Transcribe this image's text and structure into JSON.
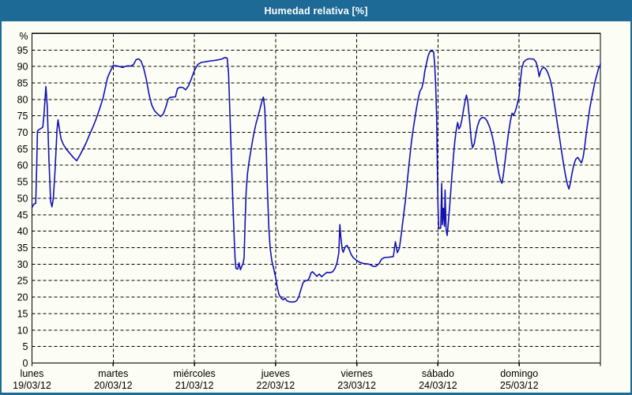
{
  "window": {
    "title": "Humedad relativa [%]"
  },
  "theme": {
    "frame_color": "#1e6a96",
    "panel_color": "#fcfdf4",
    "line_color": "#1212b4",
    "grid_color": "#000000",
    "text_color": "#000000",
    "title_color": "#ffffff"
  },
  "chart_data": {
    "type": "line",
    "title": "Humedad relativa [%]",
    "ylabel": "%",
    "y_unit_symbol": "%",
    "ylim": [
      0,
      100
    ],
    "y_tick_step": 5,
    "y_tick_labels": [
      0,
      5,
      10,
      15,
      20,
      25,
      30,
      35,
      40,
      45,
      50,
      55,
      60,
      65,
      70,
      75,
      80,
      85,
      90,
      95
    ],
    "grid": "dashed, horizontal every 5%, vertical at each day boundary",
    "legend": "none",
    "x_axis_days": [
      {
        "name": "lunes",
        "date": "19/03/12"
      },
      {
        "name": "martes",
        "date": "20/03/12"
      },
      {
        "name": "miércoles",
        "date": "21/03/12"
      },
      {
        "name": "jueves",
        "date": "22/03/12"
      },
      {
        "name": "viernes",
        "date": "23/03/12"
      },
      {
        "name": "sábado",
        "date": "24/03/12"
      },
      {
        "name": "domingo",
        "date": "25/03/12"
      }
    ],
    "x_range_hours": [
      0,
      168
    ],
    "series": [
      {
        "name": "Humedad relativa",
        "unit": "%",
        "points_hour_value": [
          [
            0,
            47.2
          ],
          [
            0.6,
            48.3
          ],
          [
            1.1,
            48.4
          ],
          [
            1.4,
            60
          ],
          [
            1.6,
            70.4
          ],
          [
            2.1,
            70.9
          ],
          [
            2.7,
            71.2
          ],
          [
            3.2,
            71.6
          ],
          [
            3.6,
            76
          ],
          [
            4.1,
            83.9
          ],
          [
            4.5,
            78
          ],
          [
            5,
            62
          ],
          [
            5.5,
            49
          ],
          [
            5.9,
            47.4
          ],
          [
            6.3,
            50
          ],
          [
            6.8,
            58
          ],
          [
            7.4,
            71
          ],
          [
            7.7,
            73.8
          ],
          [
            8.1,
            71
          ],
          [
            8.6,
            68
          ],
          [
            9.3,
            66.3
          ],
          [
            10.2,
            64.8
          ],
          [
            11.2,
            63.6
          ],
          [
            12.2,
            62.4
          ],
          [
            13.2,
            61.4
          ],
          [
            14,
            62.8
          ],
          [
            15,
            64.7
          ],
          [
            16,
            66.8
          ],
          [
            17,
            69.3
          ],
          [
            18,
            71.6
          ],
          [
            19,
            74.2
          ],
          [
            20,
            77.2
          ],
          [
            21,
            80.4
          ],
          [
            21.7,
            83.6
          ],
          [
            22.3,
            86.5
          ],
          [
            23,
            88.2
          ],
          [
            23.5,
            89.2
          ],
          [
            24,
            90.3
          ],
          [
            25,
            90.2
          ],
          [
            26,
            89.9
          ],
          [
            26.8,
            89.7
          ],
          [
            27.5,
            90
          ],
          [
            28.3,
            90.2
          ],
          [
            29.2,
            90.1
          ],
          [
            30,
            90.6
          ],
          [
            30.8,
            92.1
          ],
          [
            31.5,
            92.3
          ],
          [
            32.2,
            91.7
          ],
          [
            33,
            89.5
          ],
          [
            33.8,
            86
          ],
          [
            34.6,
            81.5
          ],
          [
            35.4,
            78.3
          ],
          [
            36.2,
            76.6
          ],
          [
            37.1,
            75.6
          ],
          [
            38,
            74.8
          ],
          [
            38.8,
            75.6
          ],
          [
            39.5,
            77.5
          ],
          [
            40.2,
            80
          ],
          [
            40.8,
            80.6
          ],
          [
            41.6,
            80.7
          ],
          [
            42.4,
            80.8
          ],
          [
            43,
            83.3
          ],
          [
            43.8,
            83.7
          ],
          [
            44.6,
            83.6
          ],
          [
            45.4,
            82.9
          ],
          [
            46.2,
            84
          ],
          [
            47,
            86
          ],
          [
            48,
            88.8
          ],
          [
            49,
            90.6
          ],
          [
            50,
            91.2
          ],
          [
            51.5,
            91.5
          ],
          [
            53,
            91.7
          ],
          [
            54.5,
            91.9
          ],
          [
            56,
            92.2
          ],
          [
            57,
            92.7
          ],
          [
            57.7,
            92.5
          ],
          [
            58.1,
            88
          ],
          [
            58.5,
            76
          ],
          [
            59,
            60
          ],
          [
            59.5,
            45
          ],
          [
            60,
            32
          ],
          [
            60.3,
            28.7
          ],
          [
            60.8,
            28.5
          ],
          [
            61.2,
            30.4
          ],
          [
            61.6,
            28.3
          ],
          [
            62,
            29.3
          ],
          [
            62.4,
            30.2
          ],
          [
            62.7,
            32
          ],
          [
            63,
            43
          ],
          [
            63.3,
            52
          ],
          [
            63.7,
            57.5
          ],
          [
            64.2,
            61.5
          ],
          [
            64.7,
            64.5
          ],
          [
            65.2,
            67.5
          ],
          [
            65.7,
            70.3
          ],
          [
            66.3,
            73
          ],
          [
            66.9,
            75.2
          ],
          [
            67.5,
            77.6
          ],
          [
            68,
            79.6
          ],
          [
            68.4,
            80.7
          ],
          [
            68.8,
            77
          ],
          [
            69.2,
            66
          ],
          [
            69.6,
            52
          ],
          [
            70,
            41
          ],
          [
            70.4,
            34.8
          ],
          [
            70.9,
            31
          ],
          [
            71.4,
            28.8
          ],
          [
            72,
            26
          ],
          [
            72.5,
            23
          ],
          [
            73,
            20.8
          ],
          [
            73.7,
            19.6
          ],
          [
            74.3,
            19.2
          ],
          [
            74.8,
            19.7
          ],
          [
            75.3,
            18.9
          ],
          [
            76,
            18.6
          ],
          [
            77,
            18.5
          ],
          [
            77.7,
            18.6
          ],
          [
            78.3,
            19
          ],
          [
            78.9,
            20.2
          ],
          [
            79.5,
            22.4
          ],
          [
            80.1,
            24.3
          ],
          [
            80.7,
            24.9
          ],
          [
            81.5,
            25.1
          ],
          [
            82,
            25.9
          ],
          [
            82.5,
            27.4
          ],
          [
            82.9,
            27.7
          ],
          [
            83.5,
            27.1
          ],
          [
            84.2,
            26.3
          ],
          [
            84.9,
            27
          ],
          [
            85.6,
            26.2
          ],
          [
            86.3,
            26.8
          ],
          [
            87.1,
            27.5
          ],
          [
            88,
            27.4
          ],
          [
            88.9,
            27.7
          ],
          [
            89.6,
            28.8
          ],
          [
            90.2,
            30.6
          ],
          [
            90.7,
            33.5
          ],
          [
            91,
            42
          ],
          [
            91.3,
            38
          ],
          [
            91.7,
            34.5
          ],
          [
            92,
            33.6
          ],
          [
            92.5,
            35.2
          ],
          [
            93.1,
            35.7
          ],
          [
            93.7,
            34.6
          ],
          [
            94.3,
            33
          ],
          [
            95,
            31.9
          ],
          [
            96,
            31.1
          ],
          [
            97,
            30.5
          ],
          [
            98,
            30.2
          ],
          [
            99,
            30.1
          ],
          [
            100,
            29.9
          ],
          [
            100.6,
            29.4
          ],
          [
            101.6,
            29.3
          ],
          [
            102.6,
            30.2
          ],
          [
            103.4,
            31.6
          ],
          [
            104.2,
            32
          ],
          [
            105.5,
            32.1
          ],
          [
            106.8,
            32.3
          ],
          [
            107.4,
            36.8
          ],
          [
            108,
            33.5
          ],
          [
            108.6,
            34.9
          ],
          [
            109.2,
            39.5
          ],
          [
            109.8,
            44.5
          ],
          [
            110.4,
            49.5
          ],
          [
            111,
            56
          ],
          [
            111.6,
            62
          ],
          [
            112.2,
            67.5
          ],
          [
            112.9,
            72.5
          ],
          [
            113.6,
            77
          ],
          [
            114.2,
            80.5
          ],
          [
            114.7,
            82.6
          ],
          [
            115.2,
            83.4
          ],
          [
            115.7,
            85.5
          ],
          [
            116.1,
            88.5
          ],
          [
            116.6,
            91
          ],
          [
            117.1,
            93.2
          ],
          [
            117.6,
            94.5
          ],
          [
            118.2,
            94.7
          ],
          [
            118.7,
            94.4
          ],
          [
            119,
            91
          ],
          [
            119.3,
            85
          ],
          [
            119.6,
            75
          ],
          [
            119.8,
            60
          ],
          [
            120,
            48
          ],
          [
            120.2,
            41.2
          ],
          [
            120.5,
            40.8
          ],
          [
            120.8,
            41
          ],
          [
            121.1,
            54.5
          ],
          [
            121.3,
            42
          ],
          [
            121.6,
            47
          ],
          [
            121.9,
            41.5
          ],
          [
            122.1,
            52.5
          ],
          [
            122.4,
            40.5
          ],
          [
            122.7,
            38.7
          ],
          [
            123,
            42
          ],
          [
            123.4,
            47
          ],
          [
            123.8,
            52.5
          ],
          [
            124.2,
            58
          ],
          [
            124.6,
            63
          ],
          [
            125,
            67.5
          ],
          [
            125.4,
            70.8
          ],
          [
            125.8,
            73
          ],
          [
            126.2,
            71
          ],
          [
            126.6,
            71.8
          ],
          [
            127,
            73.5
          ],
          [
            127.5,
            76.5
          ],
          [
            128,
            79.5
          ],
          [
            128.4,
            81.3
          ],
          [
            128.8,
            79.5
          ],
          [
            129.3,
            74
          ],
          [
            129.8,
            68
          ],
          [
            130.2,
            65.3
          ],
          [
            130.7,
            66.5
          ],
          [
            131.2,
            69.5
          ],
          [
            131.7,
            72
          ],
          [
            132.3,
            73.8
          ],
          [
            133,
            74.5
          ],
          [
            133.8,
            74.4
          ],
          [
            134.5,
            73.5
          ],
          [
            135.3,
            71.5
          ],
          [
            136,
            69
          ],
          [
            136.7,
            65.5
          ],
          [
            137.3,
            61.5
          ],
          [
            138,
            57.5
          ],
          [
            138.5,
            55.3
          ],
          [
            138.9,
            54.6
          ],
          [
            139.3,
            57
          ],
          [
            139.8,
            61
          ],
          [
            140.3,
            65.5
          ],
          [
            140.8,
            69.5
          ],
          [
            141.4,
            73.5
          ],
          [
            141.9,
            75.8
          ],
          [
            142.3,
            75.2
          ],
          [
            142.8,
            76.3
          ],
          [
            143.3,
            78
          ],
          [
            143.8,
            80.2
          ],
          [
            144,
            81.5
          ],
          [
            144.4,
            86
          ],
          [
            144.8,
            89.5
          ],
          [
            145.3,
            91.3
          ],
          [
            146,
            92
          ],
          [
            146.7,
            92.3
          ],
          [
            147.5,
            92.3
          ],
          [
            148.3,
            92.2
          ],
          [
            149,
            91.3
          ],
          [
            149.5,
            89.3
          ],
          [
            149.9,
            86.9
          ],
          [
            150.3,
            88.5
          ],
          [
            150.8,
            89.4
          ],
          [
            151.3,
            89.7
          ],
          [
            151.9,
            89.2
          ],
          [
            152.5,
            88
          ],
          [
            153.1,
            86.2
          ],
          [
            153.7,
            83.5
          ],
          [
            154.2,
            80
          ],
          [
            154.8,
            76
          ],
          [
            155.3,
            72.5
          ],
          [
            155.9,
            68.5
          ],
          [
            156.5,
            64.5
          ],
          [
            157.1,
            60.5
          ],
          [
            157.7,
            56.8
          ],
          [
            158.3,
            54
          ],
          [
            158.7,
            52.8
          ],
          [
            159.1,
            54.5
          ],
          [
            159.6,
            57.5
          ],
          [
            160.1,
            60
          ],
          [
            160.7,
            61.8
          ],
          [
            161.3,
            62.4
          ],
          [
            161.9,
            61.5
          ],
          [
            162.4,
            60.7
          ],
          [
            162.9,
            62.5
          ],
          [
            163.4,
            66
          ],
          [
            163.9,
            70.3
          ],
          [
            164.4,
            74
          ],
          [
            164.9,
            77.5
          ],
          [
            165.4,
            80.3
          ],
          [
            165.9,
            82.8
          ],
          [
            166.4,
            85.3
          ],
          [
            166.9,
            87.3
          ],
          [
            167.3,
            88.8
          ],
          [
            167.6,
            89.9
          ],
          [
            167.8,
            89.8
          ],
          [
            168,
            90.8
          ]
        ]
      }
    ]
  }
}
